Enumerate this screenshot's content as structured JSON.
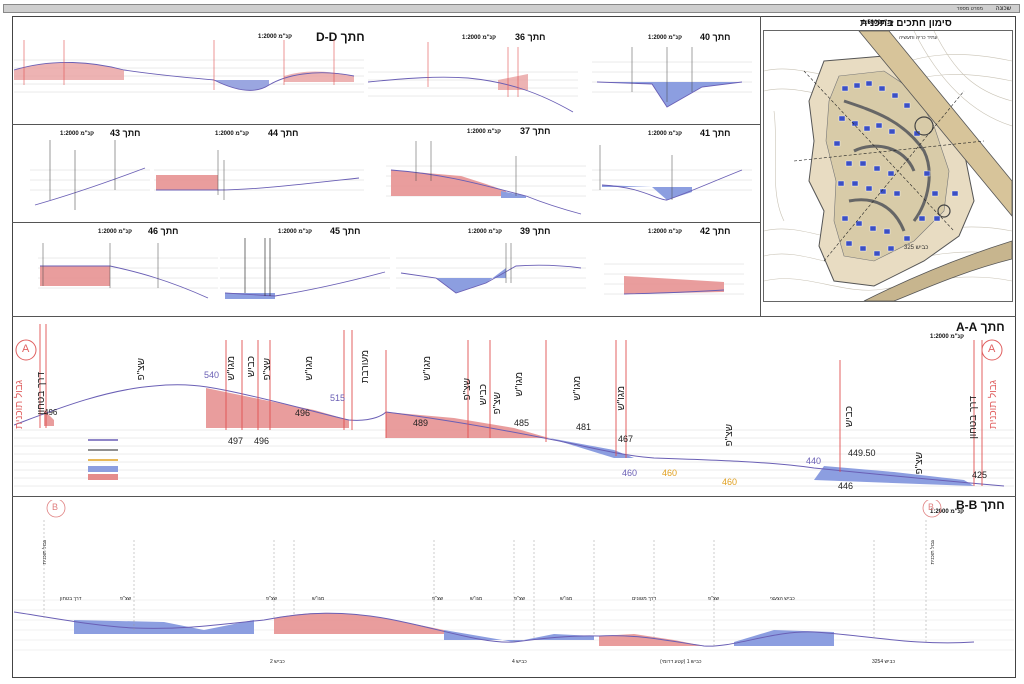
{
  "header": {
    "right_label": "שכונה",
    "right_sub": "מפרט מספר"
  },
  "map": {
    "title": "סימון חתכים בתכנית",
    "scale": "1:5000",
    "scale_unit": "קנ\"מ",
    "road_label": "כביש 325",
    "note": "עתיד כריה ותעשיה"
  },
  "sections": {
    "DD": {
      "title": "חתך D-D",
      "scale": "קנ\"מ 1:2000"
    },
    "s36": {
      "title": "חתך 36",
      "scale": "קנ\"מ 1:2000"
    },
    "s40": {
      "title": "חתך 40",
      "scale": "קנ\"מ 1:2000"
    },
    "s43": {
      "title": "חתך 43",
      "scale": "קנ\"מ 1:2000"
    },
    "s44": {
      "title": "חתך 44",
      "scale": "קנ\"מ 1:2000"
    },
    "s37": {
      "title": "חתך 37",
      "scale": "קנ\"מ 1:2000"
    },
    "s41": {
      "title": "חתך 41",
      "scale": "קנ\"מ 1:2000"
    },
    "s46": {
      "title": "חתך 46",
      "scale": "קנ\"מ 1:2000"
    },
    "s45": {
      "title": "חתך 45",
      "scale": "קנ\"מ 1:2000"
    },
    "s39": {
      "title": "חתך 39",
      "scale": "קנ\"מ 1:2000"
    },
    "s42": {
      "title": "חתך 42",
      "scale": "קנ\"מ 1:2000"
    },
    "AA": {
      "title": "חתך A-A",
      "scale": "קנ\"מ 1:2000"
    },
    "BB": {
      "title": "חתך B-B",
      "scale": "קנ\"מ 1:2000"
    }
  },
  "aa": {
    "marker": "A",
    "labels": {
      "plan_edge_left": "גבול תוכנית",
      "plan_edge_right": "גבול תוכנית",
      "road_left": "דרך בטחון",
      "road_right": "דרך בטחון",
      "open_space_1": "שצ\"פ",
      "residential_1": "מגו\"ש",
      "road_1": "כביש",
      "open_space_2": "שצ\"פ",
      "residential_2": "מגו\"ש",
      "mixed": "מעורבת",
      "residential_3": "מגו\"ש",
      "open_space_3": "שצ\"פ",
      "road_2": "כביש",
      "open_space_4": "שצ\"פ",
      "residential_4": "מגו\"ש",
      "residential_5": "מגו\"ש",
      "residential_6": "מגו\"ש",
      "open_space_5": "שצ\"פ",
      "road_3": "כביש",
      "open_space_6": "שצ\"פ"
    },
    "elevations": [
      "496",
      "540",
      "497",
      "496",
      "496",
      "515",
      "489",
      "485",
      "481",
      "467",
      "460",
      "460",
      "460",
      "440",
      "449.50",
      "446",
      "425"
    ]
  },
  "bb": {
    "marker": "B",
    "road_labels": [
      "כביש 2",
      "כביש 4",
      "כביש 1 (קטע דרומי)",
      "כביש 3254"
    ],
    "text_labels": [
      "גבול תוכנית",
      "דרך בטחון",
      "שצ\"פ",
      "שצ\"פ",
      "מגו\"ש",
      "שצ\"פ",
      "מגו\"ש",
      "שצ\"פ",
      "דרך מגוונים",
      "שצ\"פ",
      "מגו\"ש",
      "כביש הצעצי",
      "גבול תוכנית"
    ]
  },
  "colors": {
    "fill": "#e58c8c",
    "cut": "#8c9ee0",
    "terrain": "#6a5fb5",
    "marker": "#e06060",
    "accent": "#e0a020"
  }
}
